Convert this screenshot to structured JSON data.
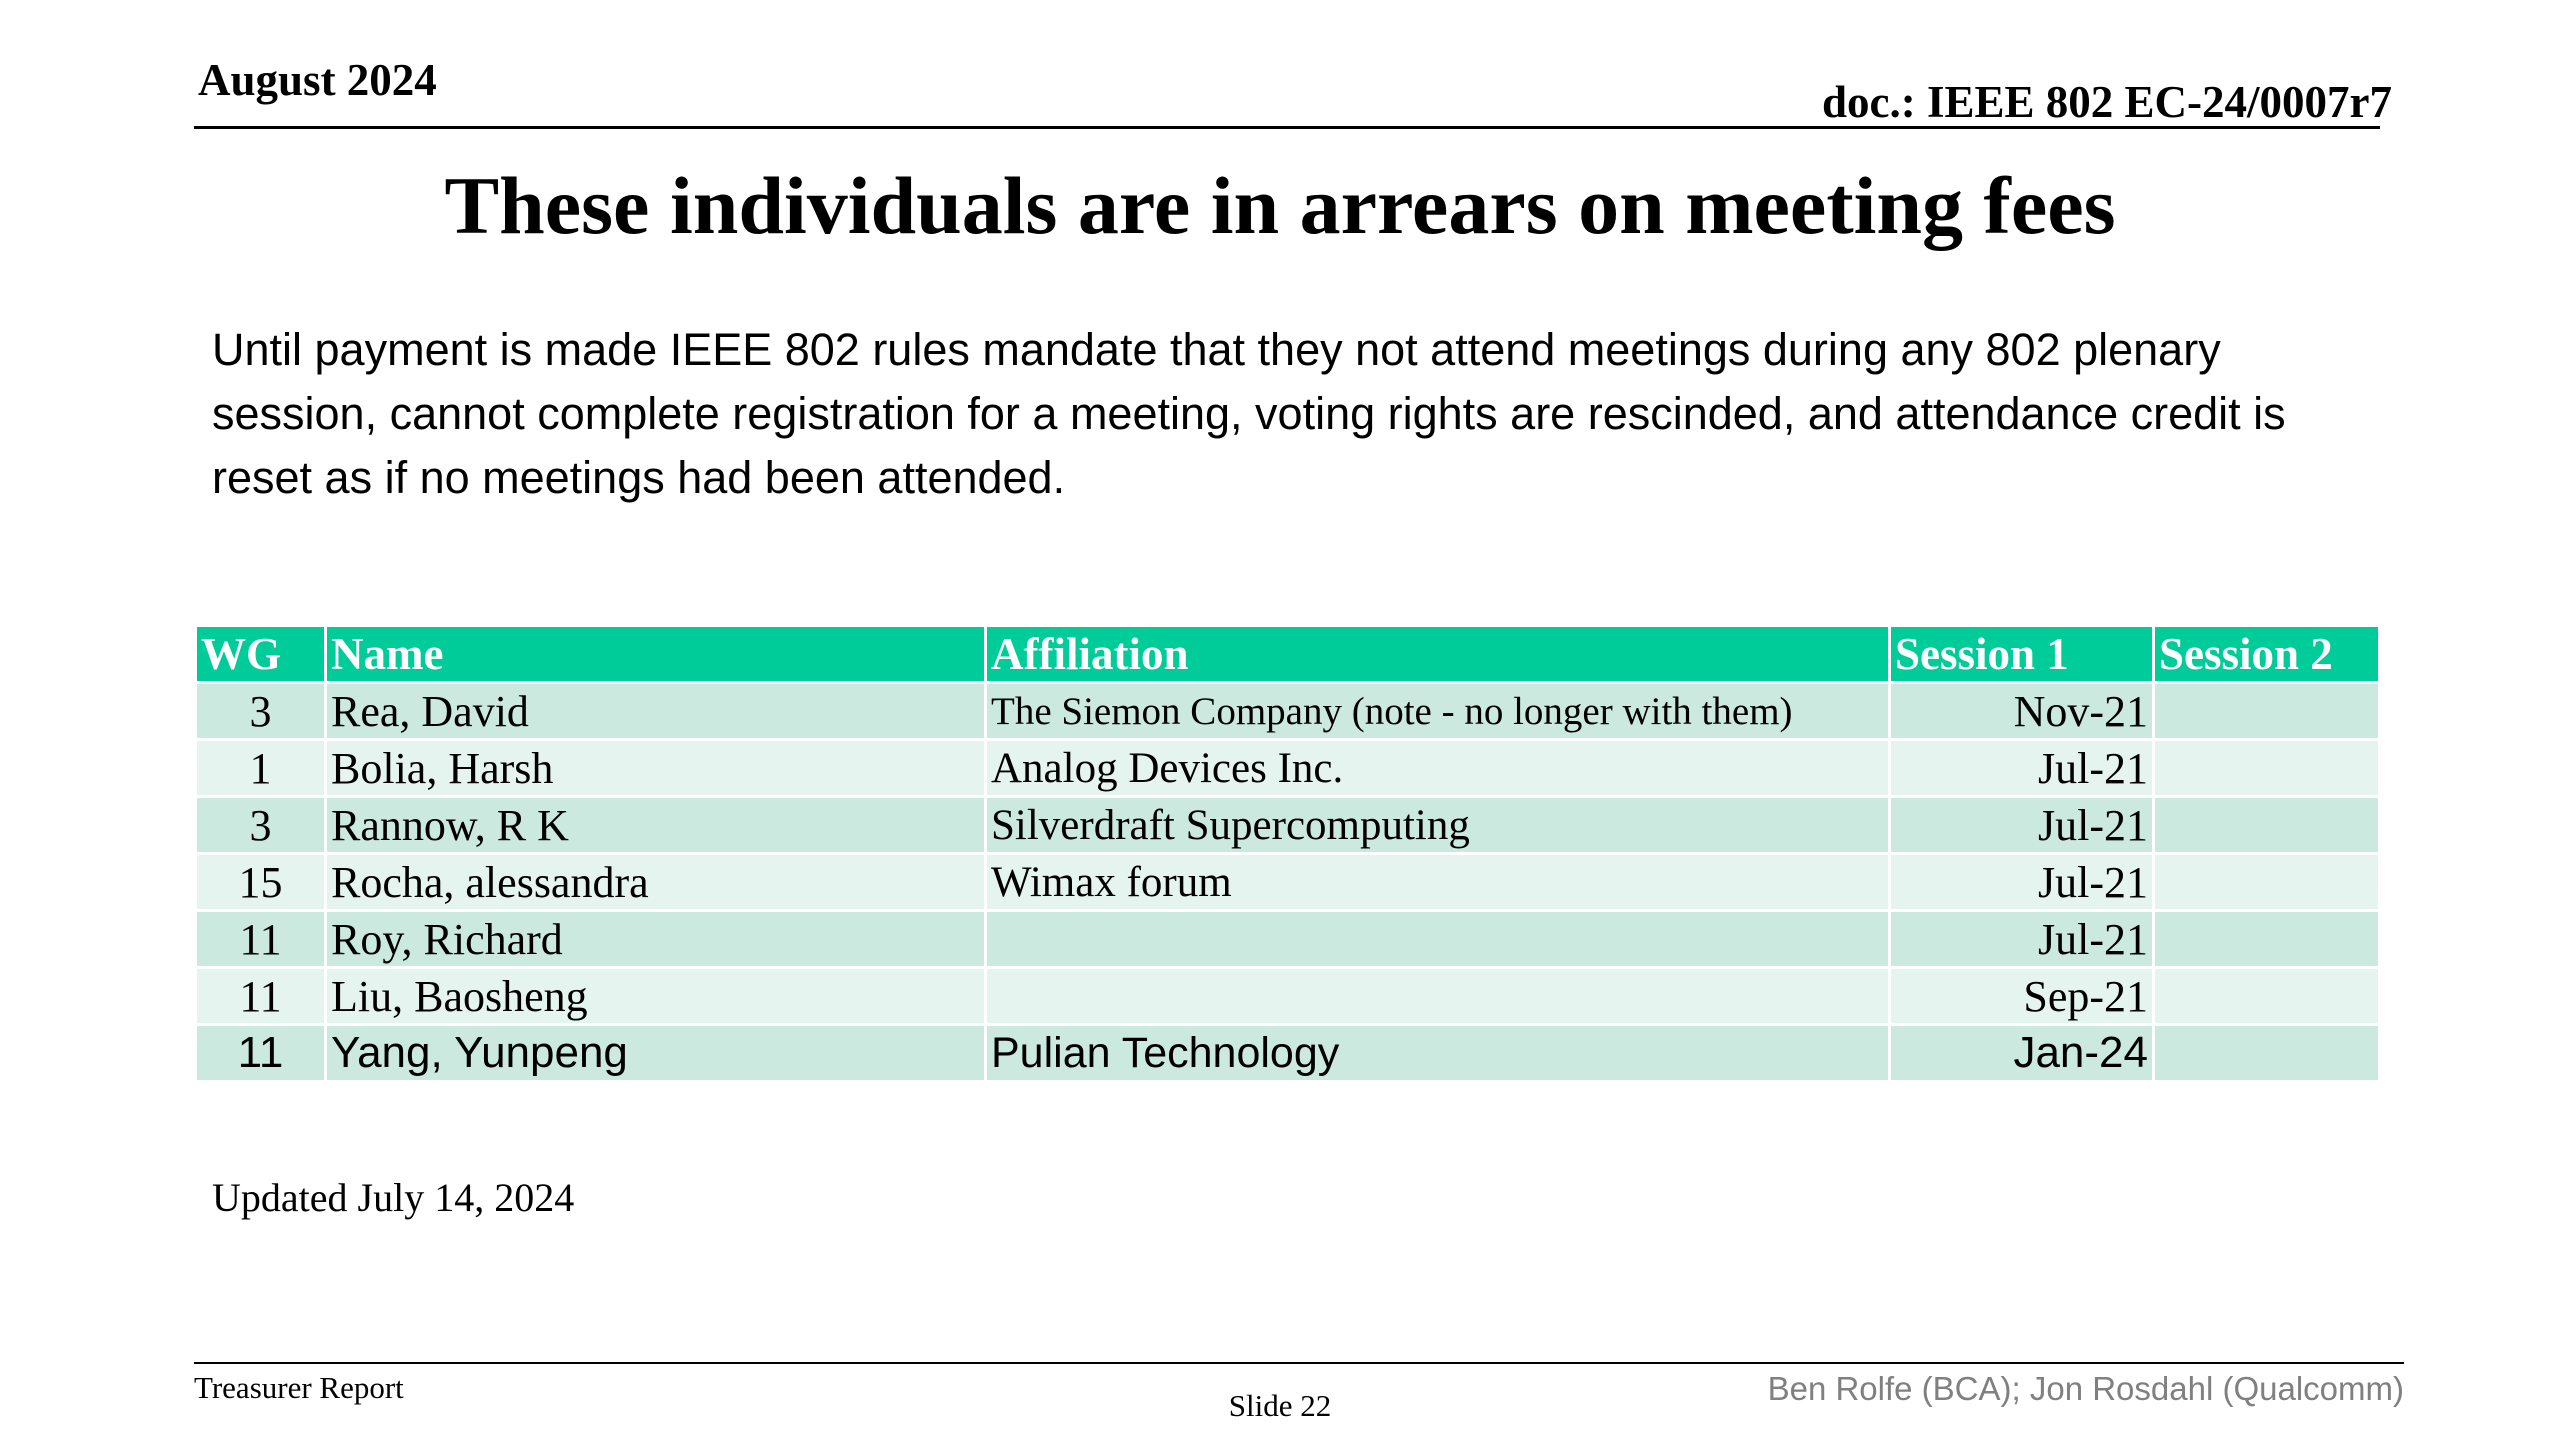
{
  "header": {
    "date": "August 2024",
    "doc_id": "doc.: IEEE 802 EC-24/0007r7"
  },
  "title": "These individuals are in arrears on meeting fees",
  "body": "Until payment is made IEEE 802 rules mandate that they not attend meetings during any 802 plenary session, cannot complete registration for a meeting, voting rights are rescinded, and attendance credit is reset as if no meetings had been attended.",
  "table": {
    "columns": [
      "WG",
      "Name",
      "Affiliation",
      "Session 1",
      "Session 2"
    ],
    "rows": [
      {
        "wg": "3",
        "name": "Rea, David",
        "affiliation": "The Siemon Company (note - no longer with them)",
        "session1": "Nov-21",
        "session2": ""
      },
      {
        "wg": "1",
        "name": "Bolia,  Harsh",
        "affiliation": "Analog Devices Inc.",
        "session1": "Jul-21",
        "session2": ""
      },
      {
        "wg": "3",
        "name": "Rannow,  R K",
        "affiliation": "Silverdraft Supercomputing",
        "session1": "Jul-21",
        "session2": ""
      },
      {
        "wg": "15",
        "name": "Rocha,  alessandra",
        "affiliation": "Wimax forum",
        "session1": "Jul-21",
        "session2": ""
      },
      {
        "wg": "11",
        "name": "Roy,  Richard",
        "affiliation": "",
        "session1": "Jul-21",
        "session2": ""
      },
      {
        "wg": "11",
        "name": "Liu, Baosheng",
        "affiliation": "",
        "session1": "Sep-21",
        "session2": ""
      },
      {
        "wg": "11",
        "name": "Yang, Yunpeng",
        "affiliation": "Pulian Technology",
        "session1": "Jan-24",
        "session2": ""
      }
    ]
  },
  "updated": "Updated July 14, 2024",
  "footer": {
    "left": "Treasurer Report",
    "center": "Slide 22",
    "right": "Ben Rolfe (BCA);   Jon Rosdahl (Qualcomm)"
  },
  "colors": {
    "header_row": "#00cc99",
    "row_odd": "#cce9df",
    "row_even": "#e6f4ef",
    "footer_right_text": "#808080"
  }
}
